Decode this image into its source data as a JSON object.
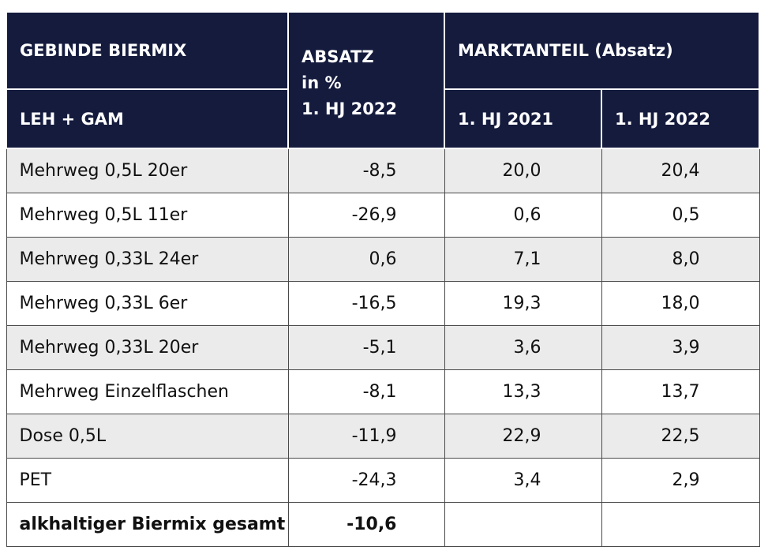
{
  "header": {
    "col1_top": "GEBINDE BIERMIX",
    "col1_bottom": "LEH + GAM",
    "col2_line1": "ABSATZ",
    "col2_line2": "in %",
    "col2_line3": "1. HJ 2022",
    "group": "MARKTANTEIL (Absatz)",
    "col3": "1. HJ 2021",
    "col4": "1. HJ 2022"
  },
  "rows": [
    {
      "label": "Mehrweg 0,5L 20er",
      "absatz": "-8,5",
      "ma2021": "20,0",
      "ma2022": "20,4"
    },
    {
      "label": "Mehrweg 0,5L 11er",
      "absatz": "-26,9",
      "ma2021": "0,6",
      "ma2022": "0,5"
    },
    {
      "label": "Mehrweg 0,33L 24er",
      "absatz": "0,6",
      "ma2021": "7,1",
      "ma2022": "8,0"
    },
    {
      "label": "Mehrweg 0,33L 6er",
      "absatz": "-16,5",
      "ma2021": "19,3",
      "ma2022": "18,0"
    },
    {
      "label": "Mehrweg 0,33L 20er",
      "absatz": "-5,1",
      "ma2021": "3,6",
      "ma2022": "3,9"
    },
    {
      "label": "Mehrweg Einzelflaschen",
      "absatz": "-8,1",
      "ma2021": "13,3",
      "ma2022": "13,7"
    },
    {
      "label": "Dose 0,5L",
      "absatz": "-11,9",
      "ma2021": "22,9",
      "ma2022": "22,5"
    },
    {
      "label": "PET",
      "absatz": "-24,3",
      "ma2021": "3,4",
      "ma2022": "2,9"
    }
  ],
  "total": {
    "label": "alkhaltiger Biermix gesamt",
    "absatz": "-10,6"
  },
  "colors": {
    "header_bg": "#141b3d",
    "row_alt_bg": "#ebebeb"
  }
}
